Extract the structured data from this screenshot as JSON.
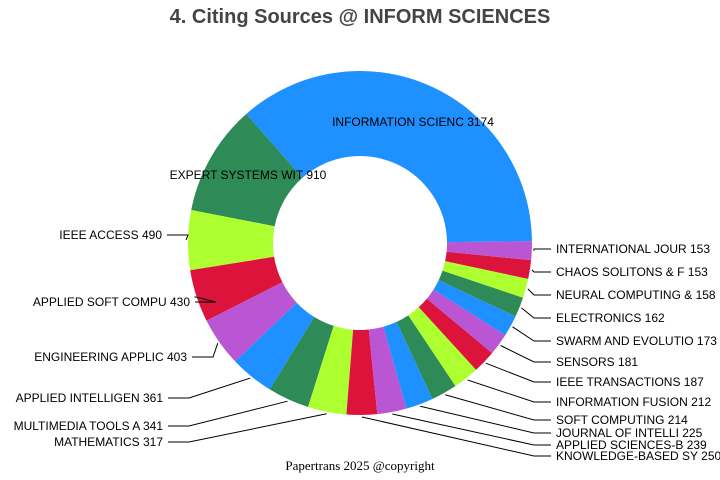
{
  "chart_data": {
    "type": "pie",
    "variant": "donut",
    "title": "4. Citing Sources @ INFORM SCIENCES",
    "footer": "Papertrans 2025 @copyright",
    "slices": [
      {
        "label": "INFORMATION SCIENC",
        "value": 3174,
        "color": "#1E90FF"
      },
      {
        "label": "EXPERT SYSTEMS WIT",
        "value": 910,
        "color": "#2E8B57"
      },
      {
        "label": "IEEE ACCESS",
        "value": 490,
        "color": "#ADFF2F"
      },
      {
        "label": "APPLIED SOFT COMPU",
        "value": 430,
        "color": "#DC143C"
      },
      {
        "label": "ENGINEERING APPLIC",
        "value": 403,
        "color": "#BA55D3"
      },
      {
        "label": "APPLIED INTELLIGEN",
        "value": 361,
        "color": "#1E90FF"
      },
      {
        "label": "MULTIMEDIA TOOLS A",
        "value": 341,
        "color": "#2E8B57"
      },
      {
        "label": "MATHEMATICS",
        "value": 317,
        "color": "#ADFF2F"
      },
      {
        "label": "KNOWLEDGE-BASED SY",
        "value": 250,
        "color": "#DC143C"
      },
      {
        "label": "APPLIED SCIENCES-B",
        "value": 239,
        "color": "#BA55D3"
      },
      {
        "label": "JOURNAL OF INTELLI",
        "value": 225,
        "color": "#1E90FF"
      },
      {
        "label": "SOFT COMPUTING",
        "value": 214,
        "color": "#2E8B57"
      },
      {
        "label": "INFORMATION FUSION",
        "value": 212,
        "color": "#ADFF2F"
      },
      {
        "label": "IEEE TRANSACTIONS ",
        "value": 187,
        "color": "#DC143C"
      },
      {
        "label": "SENSORS",
        "value": 181,
        "color": "#BA55D3"
      },
      {
        "label": "SWARM AND EVOLUTIO",
        "value": 173,
        "color": "#1E90FF"
      },
      {
        "label": "ELECTRONICS",
        "value": 162,
        "color": "#2E8B57"
      },
      {
        "label": "NEURAL COMPUTING &",
        "value": 158,
        "color": "#ADFF2F"
      },
      {
        "label": "CHAOS SOLITONS & F",
        "value": 153,
        "color": "#DC143C"
      },
      {
        "label": "INTERNATIONAL JOUR",
        "value": 153,
        "color": "#BA55D3"
      }
    ]
  }
}
